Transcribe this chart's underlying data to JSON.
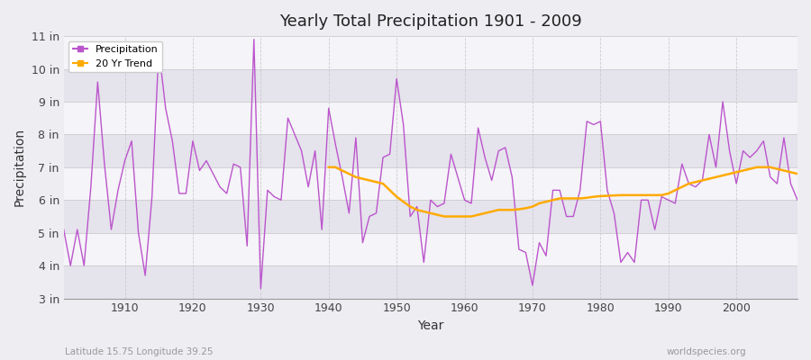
{
  "title": "Yearly Total Precipitation 1901 - 2009",
  "xlabel": "Year",
  "ylabel": "Precipitation",
  "subtitle_left": "Latitude 15.75 Longitude 39.25",
  "subtitle_right": "worldspecies.org",
  "ylim": [
    3,
    11
  ],
  "yticks": [
    3,
    4,
    5,
    6,
    7,
    8,
    9,
    10,
    11
  ],
  "ytick_labels": [
    "3 in",
    "4 in",
    "5 in",
    "6 in",
    "7 in",
    "8 in",
    "9 in",
    "10 in",
    "11 in"
  ],
  "xlim": [
    1901,
    2009
  ],
  "xticks": [
    1910,
    1920,
    1930,
    1940,
    1950,
    1960,
    1970,
    1980,
    1990,
    2000
  ],
  "background_color": "#eeedf2",
  "plot_bg_color": "#eeedf2",
  "band_light": "#f5f4f8",
  "band_dark": "#e5e3ec",
  "precip_color": "#bb55cc",
  "trend_color": "#ffaa00",
  "legend_precip": "Precipitation",
  "legend_trend": "20 Yr Trend",
  "years": [
    1901,
    1902,
    1903,
    1904,
    1905,
    1906,
    1907,
    1908,
    1909,
    1910,
    1911,
    1912,
    1913,
    1914,
    1915,
    1916,
    1917,
    1918,
    1919,
    1920,
    1921,
    1922,
    1923,
    1924,
    1925,
    1926,
    1927,
    1928,
    1929,
    1930,
    1931,
    1932,
    1933,
    1934,
    1935,
    1936,
    1937,
    1938,
    1939,
    1940,
    1941,
    1942,
    1943,
    1944,
    1945,
    1946,
    1947,
    1948,
    1949,
    1950,
    1951,
    1952,
    1953,
    1954,
    1955,
    1956,
    1957,
    1958,
    1959,
    1960,
    1961,
    1962,
    1963,
    1964,
    1965,
    1966,
    1967,
    1968,
    1969,
    1970,
    1971,
    1972,
    1973,
    1974,
    1975,
    1976,
    1977,
    1978,
    1979,
    1980,
    1981,
    1982,
    1983,
    1984,
    1985,
    1986,
    1987,
    1988,
    1989,
    1990,
    1991,
    1992,
    1993,
    1994,
    1995,
    1996,
    1997,
    1998,
    1999,
    2000,
    2001,
    2002,
    2003,
    2004,
    2005,
    2006,
    2007,
    2008,
    2009
  ],
  "precip": [
    5.1,
    4.0,
    5.1,
    4.0,
    6.4,
    9.6,
    7.1,
    5.1,
    6.3,
    7.2,
    7.8,
    5.0,
    3.7,
    6.1,
    10.6,
    8.8,
    7.8,
    6.2,
    6.2,
    7.8,
    6.9,
    7.2,
    6.8,
    6.4,
    6.2,
    7.1,
    7.0,
    4.6,
    10.9,
    3.3,
    6.3,
    6.1,
    6.0,
    8.5,
    8.0,
    7.5,
    6.4,
    7.5,
    5.1,
    8.8,
    7.7,
    6.7,
    5.6,
    7.9,
    4.7,
    5.5,
    5.6,
    7.3,
    7.4,
    9.7,
    8.3,
    5.5,
    5.8,
    4.1,
    6.0,
    5.8,
    5.9,
    7.4,
    6.7,
    6.0,
    5.9,
    8.2,
    7.3,
    6.6,
    7.5,
    7.6,
    6.7,
    4.5,
    4.4,
    3.4,
    4.7,
    4.3,
    6.3,
    6.3,
    5.5,
    5.5,
    6.3,
    8.4,
    8.3,
    8.4,
    6.3,
    5.6,
    4.1,
    4.4,
    4.1,
    6.0,
    6.0,
    5.1,
    6.1,
    6.0,
    5.9,
    7.1,
    6.5,
    6.4,
    6.6,
    8.0,
    7.0,
    9.0,
    7.5,
    6.5,
    7.5,
    7.3,
    7.5,
    7.8,
    6.7,
    6.5,
    7.9,
    6.5,
    6.0
  ],
  "trend_years": [
    1940,
    1941,
    1942,
    1943,
    1944,
    1945,
    1946,
    1947,
    1948,
    1949,
    1950,
    1951,
    1952,
    1953,
    1954,
    1955,
    1956,
    1957,
    1958,
    1959,
    1960,
    1961,
    1962,
    1963,
    1964,
    1965,
    1966,
    1967,
    1968,
    1969,
    1970,
    1971,
    1972,
    1973,
    1974,
    1975,
    1976,
    1977,
    1978,
    1979,
    1980,
    1981,
    1982,
    1983,
    1984,
    1985,
    1986,
    1987,
    1988,
    1989,
    1990,
    1991,
    1992,
    1993,
    1994,
    1995,
    1996,
    1997,
    1998,
    1999,
    2000,
    2001,
    2002,
    2003,
    2004,
    2005,
    2006,
    2007,
    2008,
    2009
  ],
  "trend": [
    7.0,
    7.0,
    6.9,
    6.8,
    6.7,
    6.65,
    6.6,
    6.55,
    6.5,
    6.3,
    6.1,
    5.95,
    5.8,
    5.7,
    5.65,
    5.6,
    5.55,
    5.5,
    5.5,
    5.5,
    5.5,
    5.5,
    5.55,
    5.6,
    5.65,
    5.7,
    5.7,
    5.7,
    5.72,
    5.75,
    5.8,
    5.9,
    5.95,
    6.0,
    6.05,
    6.05,
    6.05,
    6.05,
    6.07,
    6.1,
    6.12,
    6.13,
    6.14,
    6.15,
    6.15,
    6.15,
    6.15,
    6.15,
    6.15,
    6.15,
    6.2,
    6.3,
    6.4,
    6.5,
    6.55,
    6.6,
    6.65,
    6.7,
    6.75,
    6.8,
    6.85,
    6.9,
    6.95,
    7.0,
    7.0,
    7.0,
    6.95,
    6.9,
    6.85,
    6.8
  ]
}
